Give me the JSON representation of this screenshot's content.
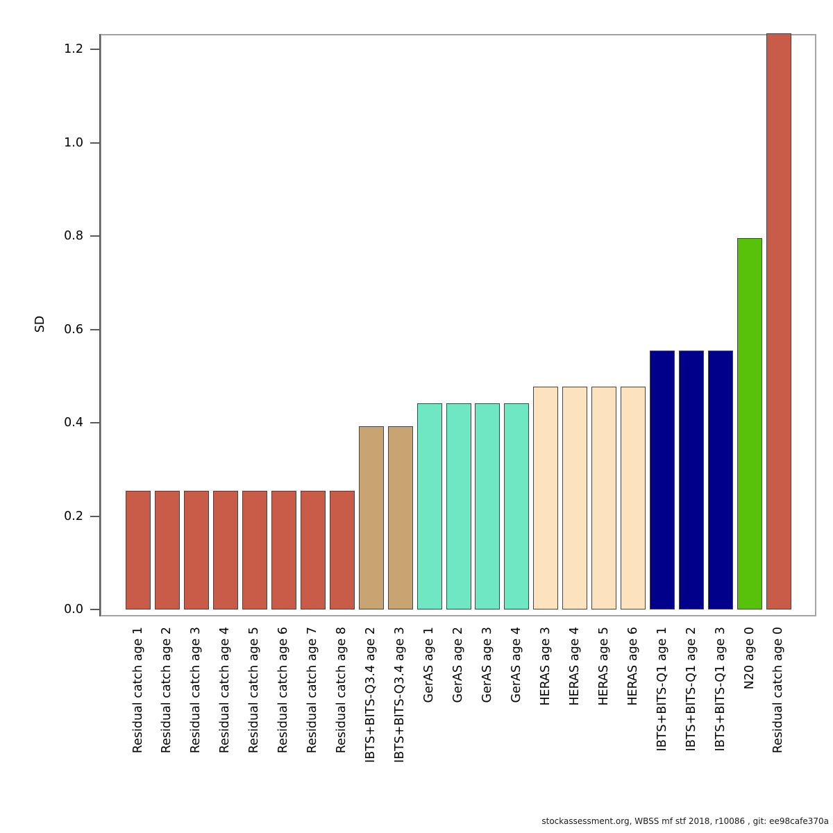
{
  "chart_data": {
    "type": "bar",
    "title": "",
    "xlabel": "",
    "ylabel": "SD",
    "ylim": [
      0,
      1.233
    ],
    "yticks": [
      0.0,
      0.2,
      0.4,
      0.6,
      0.8,
      1.0,
      1.2
    ],
    "ytick_labels": [
      "0.0",
      "0.2",
      "0.4",
      "0.6",
      "0.8",
      "1.0",
      "1.2"
    ],
    "grid": false,
    "legend_position": "none",
    "categories": [
      "Residual catch age 1",
      "Residual catch age 2",
      "Residual catch age 3",
      "Residual catch age 4",
      "Residual catch age 5",
      "Residual catch age 6",
      "Residual catch age 7",
      "Residual catch age 8",
      "IBTS+BITS-Q3.4 age 2",
      "IBTS+BITS-Q3.4 age 3",
      "GerAS age 1",
      "GerAS age 2",
      "GerAS age 3",
      "GerAS age 4",
      "HERAS age 3",
      "HERAS age 4",
      "HERAS age 5",
      "HERAS age 6",
      "IBTS+BITS-Q1 age 1",
      "IBTS+BITS-Q1 age 2",
      "IBTS+BITS-Q1 age 3",
      "N20 age 0",
      "Residual catch age 0"
    ],
    "values": [
      0.255,
      0.255,
      0.255,
      0.255,
      0.255,
      0.255,
      0.255,
      0.255,
      0.393,
      0.393,
      0.441,
      0.441,
      0.441,
      0.441,
      0.478,
      0.478,
      0.478,
      0.478,
      0.554,
      0.554,
      0.554,
      0.795,
      1.235
    ],
    "bar_colors": [
      "#C85C48",
      "#C85C48",
      "#C85C48",
      "#C85C48",
      "#C85C48",
      "#C85C48",
      "#C85C48",
      "#C85C48",
      "#C8A472",
      "#C8A472",
      "#6FE7C2",
      "#6FE7C2",
      "#6FE7C2",
      "#6FE7C2",
      "#FDE2BE",
      "#FDE2BE",
      "#FDE2BE",
      "#FDE2BE",
      "#00008B",
      "#00008B",
      "#00008B",
      "#58C20A",
      "#C85C48"
    ],
    "bar_border_color": "#444444",
    "axis_color": "#5a5a5a",
    "box_color": "#a3a3a3"
  },
  "footer": {
    "text": "stockassessment.org, WBSS mf stf 2018, r10086 , git: ee98cafe370a"
  }
}
